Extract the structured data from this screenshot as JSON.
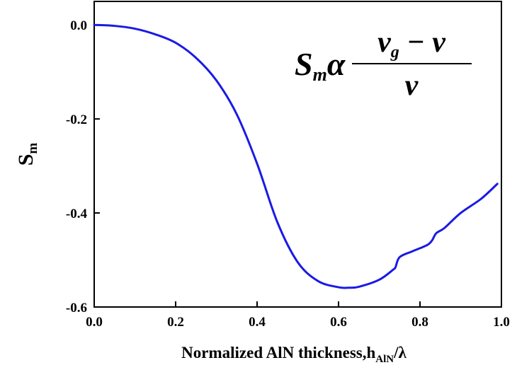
{
  "chart_data": {
    "type": "line",
    "xlabel": "Normalized AlN thickness,h",
    "xlabel_sub": "AlN",
    "xlabel_tail": "/λ",
    "ylabel": "S",
    "ylabel_sub": "m",
    "xlim": [
      0.0,
      1.0
    ],
    "ylim": [
      -0.6,
      0.05
    ],
    "xticks": [
      "0.0",
      "0.2",
      "0.4",
      "0.6",
      "0.8",
      "1.0"
    ],
    "xtick_values": [
      0.0,
      0.2,
      0.4,
      0.6,
      0.8,
      1.0
    ],
    "yticks": [
      "0.0",
      "-0.2",
      "-0.4",
      "-0.6"
    ],
    "ytick_values": [
      0.0,
      -0.2,
      -0.4,
      -0.6
    ],
    "grid": false,
    "line_color": "#1a1ae6",
    "annotation": {
      "lhs": "S",
      "lhs_sub": "m",
      "relation": "α",
      "numerator": "v",
      "numerator_sub": "g",
      "numerator_tail": " − v",
      "denominator": "v"
    },
    "series": [
      {
        "x": [
          0.0,
          0.05,
          0.1,
          0.15,
          0.2,
          0.25,
          0.3,
          0.35,
          0.4,
          0.45,
          0.5,
          0.55,
          0.6,
          0.625,
          0.65,
          0.7,
          0.735,
          0.74,
          0.75,
          0.78,
          0.8,
          0.82,
          0.83,
          0.84,
          0.86,
          0.9,
          0.95,
          0.99
        ],
        "y": [
          0.0,
          -0.002,
          -0.008,
          -0.02,
          -0.038,
          -0.07,
          -0.118,
          -0.19,
          -0.295,
          -0.42,
          -0.505,
          -0.545,
          -0.558,
          -0.559,
          -0.557,
          -0.542,
          -0.52,
          -0.515,
          -0.494,
          -0.482,
          -0.475,
          -0.467,
          -0.458,
          -0.443,
          -0.432,
          -0.4,
          -0.37,
          -0.338
        ]
      }
    ]
  }
}
